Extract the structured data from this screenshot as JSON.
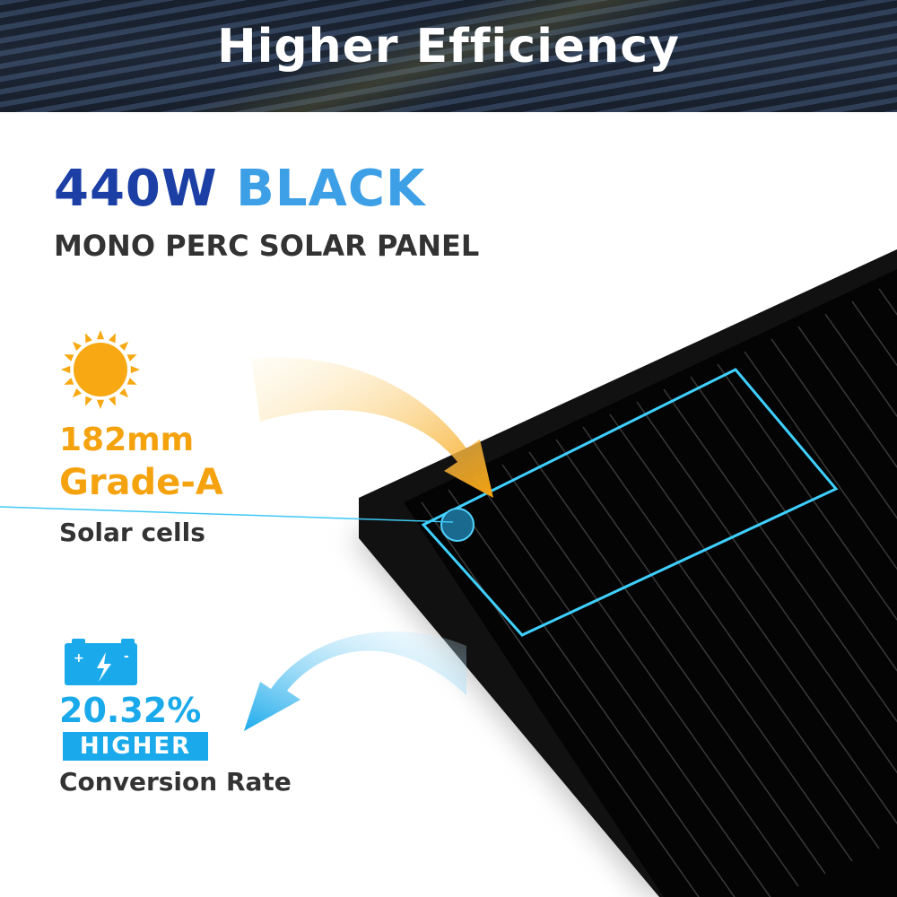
{
  "banner": {
    "title": "Higher Efficiency"
  },
  "heading": {
    "wattage": "440W",
    "color": "BLACK",
    "subtitle": "MONO PERC SOLAR PANEL"
  },
  "cells_feature": {
    "icon": "sun-icon",
    "size": "182mm",
    "grade": "Grade-A",
    "label": "Solar cells"
  },
  "efficiency_feature": {
    "icon": "battery-charge-icon",
    "value": "20.32%",
    "badge": "HIGHER",
    "label": "Conversion Rate"
  },
  "colors": {
    "dark_blue": "#1c3fa6",
    "light_blue": "#3d9fe6",
    "orange": "#f5a20f",
    "cyan": "#1aaaeb"
  }
}
